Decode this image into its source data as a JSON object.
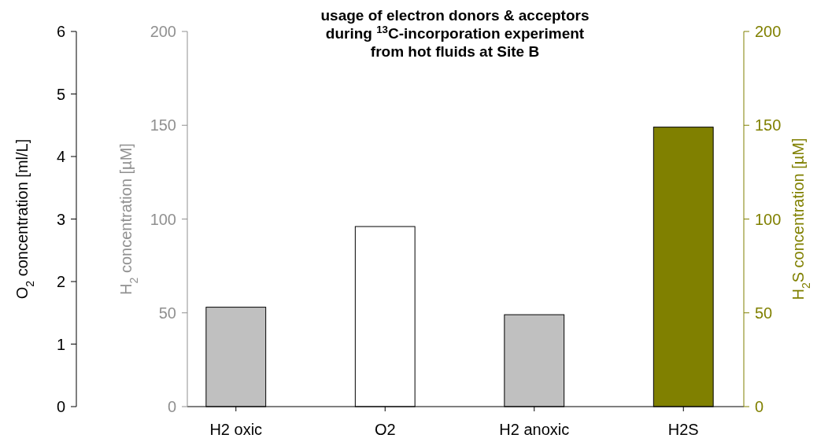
{
  "chart_data": {
    "type": "bar",
    "title": "usage of electron donors & acceptors\nduring $^{13}$C-incorporation experiment\nfrom hot fluids at Site B",
    "categories": [
      "H2 oxic",
      "O2",
      "H2 anoxic",
      "H2S"
    ],
    "series": [
      {
        "color": "#c0c0c0",
        "axis": "y2",
        "values": [
          53,
          null,
          49,
          null
        ]
      },
      {
        "color": "#ffffff",
        "axis": "y",
        "values": [
          null,
          2.88,
          null,
          null
        ]
      },
      {
        "color": "#808000",
        "axis": "y3",
        "values": [
          null,
          null,
          null,
          149
        ]
      }
    ],
    "ylabel": "O$_{2}$ concentration [ml/L]",
    "ylim": [
      0,
      6
    ],
    "yticks": [
      0,
      1,
      2,
      3,
      4,
      5,
      6
    ],
    "y2label": "H$_{2}$ concentration [µM]",
    "y2lim": [
      0,
      200
    ],
    "y2ticks": [
      0,
      50,
      100,
      150,
      200
    ],
    "y3label": "H$_{2}$S concentration [µM]",
    "y3lim": [
      0,
      200
    ],
    "y3ticks": [
      0,
      50,
      100,
      150,
      200
    ],
    "grid": false
  }
}
